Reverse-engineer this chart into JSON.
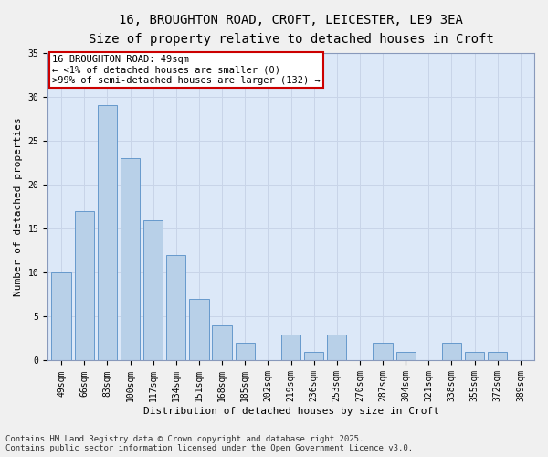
{
  "title_line1": "16, BROUGHTON ROAD, CROFT, LEICESTER, LE9 3EA",
  "title_line2": "Size of property relative to detached houses in Croft",
  "xlabel": "Distribution of detached houses by size in Croft",
  "ylabel": "Number of detached properties",
  "categories": [
    "49sqm",
    "66sqm",
    "83sqm",
    "100sqm",
    "117sqm",
    "134sqm",
    "151sqm",
    "168sqm",
    "185sqm",
    "202sqm",
    "219sqm",
    "236sqm",
    "253sqm",
    "270sqm",
    "287sqm",
    "304sqm",
    "321sqm",
    "338sqm",
    "355sqm",
    "372sqm",
    "389sqm"
  ],
  "values": [
    10,
    17,
    29,
    23,
    16,
    12,
    7,
    4,
    2,
    0,
    3,
    1,
    3,
    0,
    2,
    1,
    0,
    2,
    1,
    1,
    0
  ],
  "bar_color": "#b8d0e8",
  "bar_edge_color": "#6699cc",
  "annotation_text": "16 BROUGHTON ROAD: 49sqm\n← <1% of detached houses are smaller (0)\n>99% of semi-detached houses are larger (132) →",
  "annotation_box_color": "#ffffff",
  "annotation_box_edge_color": "#cc0000",
  "ylim": [
    0,
    35
  ],
  "yticks": [
    0,
    5,
    10,
    15,
    20,
    25,
    30,
    35
  ],
  "grid_color": "#c8d4e8",
  "bg_color": "#dce8f8",
  "fig_bg_color": "#f0f0f0",
  "footer_line1": "Contains HM Land Registry data © Crown copyright and database right 2025.",
  "footer_line2": "Contains public sector information licensed under the Open Government Licence v3.0.",
  "title_fontsize": 10,
  "subtitle_fontsize": 9,
  "axis_label_fontsize": 8,
  "tick_fontsize": 7,
  "annotation_fontsize": 7.5,
  "footer_fontsize": 6.5
}
